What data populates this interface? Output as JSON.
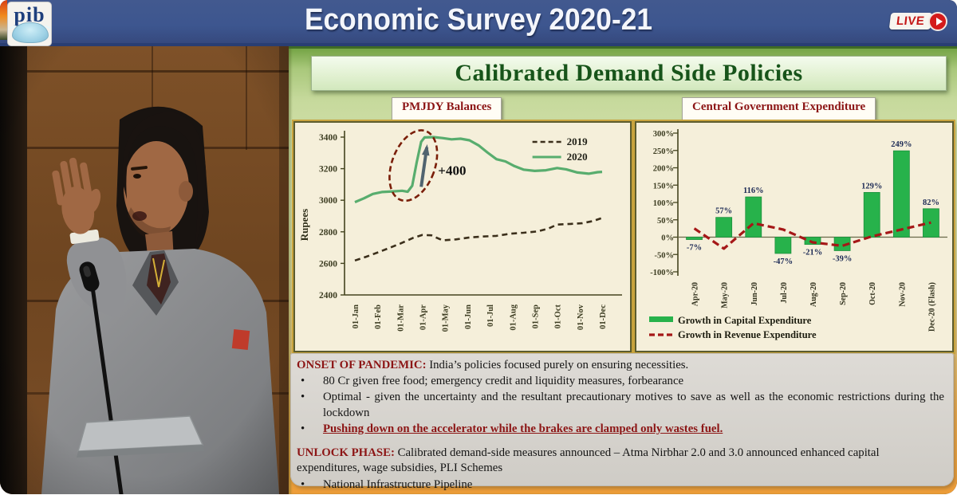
{
  "header": {
    "logo_text": "pib",
    "title": "Economic Survey 2020-21",
    "live_label": "LIVE"
  },
  "slide": {
    "title": "Calibrated Demand Side Policies",
    "left_chart_label": "PMJDY Balances",
    "right_chart_label": "Central Government Expenditure"
  },
  "notes": {
    "onset": {
      "heading": "ONSET OF PANDEMIC:",
      "intro": "India’s policies focused purely on ensuring necessities.",
      "bullets": [
        "80 Cr given free food; emergency credit and liquidity measures, forbearance",
        "Optimal - given the uncertainty and the resultant precautionary motives to save as well as the economic restrictions during the lockdown"
      ],
      "highlight": "Pushing down on the accelerator while the brakes are clamped only wastes fuel."
    },
    "unlock": {
      "heading": "UNLOCK PHASE:",
      "text": "Calibrated demand-side measures announced – Atma Nirbhar 2.0 and 3.0 announced enhanced capital expenditures, wage subsidies, PLI Schemes",
      "bullets": [
        "National Infrastructure Pipeline"
      ]
    }
  },
  "ui": {
    "bullet": "•"
  },
  "colors": {
    "topbar_blue": "#3d568f",
    "live_red": "#d41b1b",
    "slide_green": "#a9c87b",
    "slide_orange": "#ee9d38",
    "heading_red": "#8c1515",
    "title_green": "#17541a",
    "bar_green": "#27b24b",
    "line_2020_green": "#58ad6e",
    "line_2019_dark": "#3b2f1b",
    "revenue_red": "#a51717"
  },
  "chart_data": [
    {
      "type": "line",
      "title": "PMJDY Balances",
      "ylabel": "Rupees",
      "ylim": [
        2400,
        3400
      ],
      "yticks": [
        2400,
        2600,
        2800,
        3000,
        3200,
        3400
      ],
      "x_labels": [
        "01-Jan",
        "01-Feb",
        "01-Mar",
        "01-Apr",
        "01-May",
        "01-Jun",
        "01-Jul",
        "01-Aug",
        "01-Sep",
        "01-Oct",
        "01-Nov",
        "01-Dec"
      ],
      "grid": false,
      "legend_position": "top-right",
      "series": [
        {
          "name": "2019",
          "style": "dashed",
          "color": "#3b2f1b",
          "points": [
            [
              0,
              2618
            ],
            [
              0.5,
              2642
            ],
            [
              1,
              2668
            ],
            [
              1.5,
              2696
            ],
            [
              2,
              2724
            ],
            [
              2.6,
              2762
            ],
            [
              3,
              2780
            ],
            [
              3.4,
              2778
            ],
            [
              3.9,
              2746
            ],
            [
              4.5,
              2752
            ],
            [
              5.1,
              2764
            ],
            [
              5.7,
              2770
            ],
            [
              6.3,
              2774
            ],
            [
              6.9,
              2788
            ],
            [
              7.5,
              2794
            ],
            [
              8.1,
              2802
            ],
            [
              8.6,
              2820
            ],
            [
              9,
              2846
            ],
            [
              9.6,
              2850
            ],
            [
              10.1,
              2854
            ],
            [
              10.6,
              2868
            ],
            [
              11,
              2888
            ]
          ]
        },
        {
          "name": "2020",
          "style": "solid",
          "color": "#58ad6e",
          "points": [
            [
              0,
              2988
            ],
            [
              0.4,
              3012
            ],
            [
              0.8,
              3040
            ],
            [
              1.2,
              3052
            ],
            [
              1.7,
              3056
            ],
            [
              2.1,
              3060
            ],
            [
              2.35,
              3054
            ],
            [
              2.55,
              3092
            ],
            [
              2.75,
              3240
            ],
            [
              2.95,
              3370
            ],
            [
              3.1,
              3398
            ],
            [
              3.5,
              3400
            ],
            [
              3.9,
              3394
            ],
            [
              4.3,
              3386
            ],
            [
              4.7,
              3390
            ],
            [
              5.1,
              3380
            ],
            [
              5.5,
              3348
            ],
            [
              5.9,
              3302
            ],
            [
              6.3,
              3260
            ],
            [
              6.7,
              3246
            ],
            [
              7.1,
              3216
            ],
            [
              7.5,
              3194
            ],
            [
              8,
              3186
            ],
            [
              8.5,
              3190
            ],
            [
              9,
              3204
            ],
            [
              9.4,
              3196
            ],
            [
              9.9,
              3176
            ],
            [
              10.4,
              3168
            ],
            [
              10.8,
              3178
            ],
            [
              11,
              3180
            ]
          ]
        }
      ],
      "annotation": {
        "text": "+400",
        "ellipse_center_month": 2.6,
        "ellipse_center_value": 3220,
        "arrow": "up"
      }
    },
    {
      "type": "bar+line",
      "title": "Central Government Expenditure",
      "ylim": [
        -100,
        300
      ],
      "ytick_labels": [
        "-100%",
        "-50%",
        "0%",
        "50%",
        "100%",
        "150%",
        "200%",
        "250%",
        "300%"
      ],
      "yticks": [
        -100,
        -50,
        0,
        50,
        100,
        150,
        200,
        250,
        300
      ],
      "categories": [
        "Apr-20",
        "May-20",
        "Jun-20",
        "Jul-20",
        "Aug-20",
        "Sep-20",
        "Oct-20",
        "Nov-20",
        "Dec-20 (Flash)"
      ],
      "grid": false,
      "legend_position": "bottom-left",
      "series": [
        {
          "name": "Growth in Capital  Expenditure",
          "type": "bar",
          "color": "#27b24b",
          "values": [
            -7,
            57,
            116,
            -47,
            -21,
            -39,
            129,
            249,
            82
          ],
          "labels": [
            "-7%",
            "57%",
            "116%",
            "-47%",
            "-21%",
            "-39%",
            "129%",
            "249%",
            "82%"
          ]
        },
        {
          "name": "Growth in Revenue Expenditure",
          "type": "line",
          "style": "dashed",
          "color": "#a51717",
          "values": [
            25,
            -33,
            40,
            22,
            -15,
            -25,
            2,
            22,
            42
          ]
        }
      ]
    }
  ]
}
